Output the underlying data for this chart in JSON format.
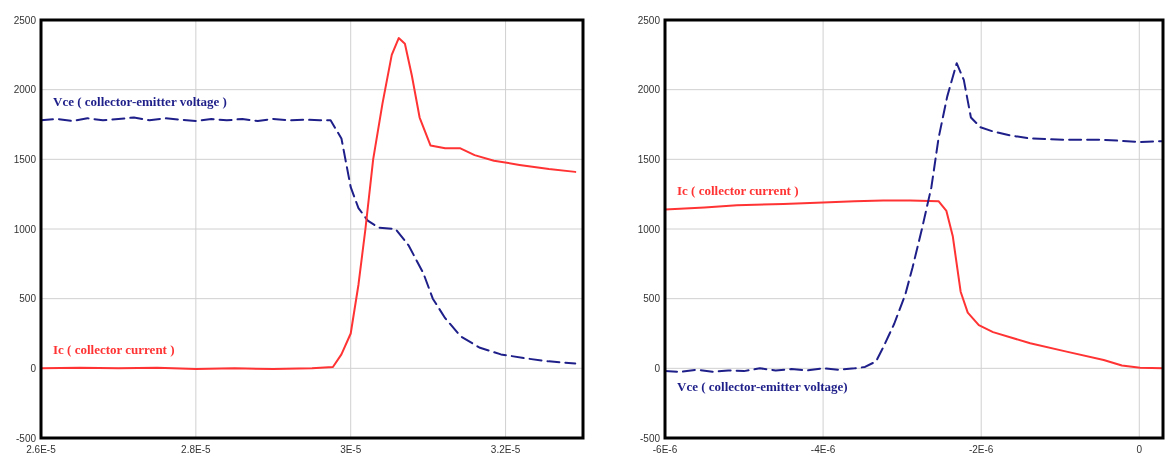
{
  "chart_data": [
    {
      "type": "line",
      "xlim": [
        2.6e-05,
        3.3e-05
      ],
      "xticks": [
        {
          "value": 2.6e-05,
          "label": "2.6E-5"
        },
        {
          "value": 2.8e-05,
          "label": "2.8E-5"
        },
        {
          "value": 3e-05,
          "label": "3E-5"
        },
        {
          "value": 3.2e-05,
          "label": "3.2E-5"
        }
      ],
      "ylim": [
        -500,
        2500
      ],
      "yticks": [
        -500,
        0,
        500,
        1000,
        1500,
        2000,
        2500
      ],
      "grid": true,
      "series": [
        {
          "name": "Vce ( collector-emitter voltage )",
          "color": "#1f1f8a",
          "line_style": "dashed",
          "x": [
            2.6e-05,
            2.62e-05,
            2.64e-05,
            2.66e-05,
            2.68e-05,
            2.7e-05,
            2.72e-05,
            2.74e-05,
            2.76e-05,
            2.78e-05,
            2.8e-05,
            2.82e-05,
            2.84e-05,
            2.86e-05,
            2.88e-05,
            2.9e-05,
            2.92e-05,
            2.94e-05,
            2.96e-05,
            2.974e-05,
            2.988e-05,
            3e-05,
            3.01e-05,
            3.022e-05,
            3.036e-05,
            3.058e-05,
            3.075e-05,
            3.094e-05,
            3.106e-05,
            3.122e-05,
            3.142e-05,
            3.166e-05,
            3.194e-05,
            3.228e-05,
            3.256e-05,
            3.29e-05
          ],
          "values": [
            1780,
            1790,
            1775,
            1795,
            1780,
            1790,
            1800,
            1780,
            1795,
            1785,
            1775,
            1790,
            1780,
            1790,
            1775,
            1790,
            1780,
            1785,
            1780,
            1780,
            1650,
            1300,
            1150,
            1060,
            1010,
            1000,
            880,
            680,
            500,
            360,
            230,
            150,
            100,
            70,
            50,
            35
          ]
        },
        {
          "name": "Ic ( collector current )",
          "color": "#ff3333",
          "line_style": "solid",
          "x": [
            2.6e-05,
            2.65e-05,
            2.7e-05,
            2.75e-05,
            2.8e-05,
            2.85e-05,
            2.9e-05,
            2.95e-05,
            2.977e-05,
            2.988e-05,
            3e-05,
            3.01e-05,
            3.019e-05,
            3.029e-05,
            3.041e-05,
            3.053e-05,
            3.062e-05,
            3.07e-05,
            3.079e-05,
            3.089e-05,
            3.103e-05,
            3.122e-05,
            3.141e-05,
            3.16e-05,
            3.185e-05,
            3.218e-05,
            3.256e-05,
            3.29e-05
          ],
          "values": [
            0,
            5,
            0,
            5,
            -5,
            0,
            -5,
            0,
            10,
            100,
            250,
            600,
            1000,
            1500,
            1900,
            2250,
            2370,
            2330,
            2100,
            1800,
            1600,
            1580,
            1580,
            1530,
            1490,
            1460,
            1430,
            1410
          ]
        }
      ]
    },
    {
      "type": "line",
      "xlim": [
        -6e-06,
        3e-07
      ],
      "xticks": [
        {
          "value": -6e-06,
          "label": "-6E-6"
        },
        {
          "value": -4e-06,
          "label": "-4E-6"
        },
        {
          "value": -2e-06,
          "label": "-2E-6"
        },
        0
      ],
      "ylim": [
        -500,
        2500
      ],
      "yticks": [
        -500,
        0,
        500,
        1000,
        1500,
        2000,
        2500
      ],
      "grid": true,
      "series": [
        {
          "name": "Ic ( collector current )",
          "color": "#ff3333",
          "line_style": "solid",
          "x": [
            -6e-06,
            -5.5e-06,
            -5.09e-06,
            -4.5e-06,
            -4e-06,
            -3.6e-06,
            -3.24e-06,
            -2.9e-06,
            -2.54e-06,
            -2.44e-06,
            -2.36e-06,
            -2.26e-06,
            -2.17e-06,
            -2.03e-06,
            -1.85e-06,
            -1.38e-06,
            -9.2e-07,
            -4.5e-07,
            -2.2e-07,
            1e-08,
            3e-07
          ],
          "values": [
            1140,
            1155,
            1170,
            1180,
            1190,
            1200,
            1205,
            1205,
            1200,
            1130,
            950,
            550,
            400,
            310,
            260,
            180,
            120,
            60,
            20,
            5,
            0
          ]
        },
        {
          "name": "Vce ( collector-emitter voltage)",
          "color": "#1f1f8a",
          "line_style": "dashed",
          "x": [
            -6e-06,
            -5.8e-06,
            -5.6e-06,
            -5.4e-06,
            -5.2e-06,
            -5e-06,
            -4.8e-06,
            -4.6e-06,
            -4.4e-06,
            -4.2e-06,
            -4e-06,
            -3.8e-06,
            -3.6e-06,
            -3.47e-06,
            -3.33e-06,
            -3.24e-06,
            -3.1e-06,
            -2.96e-06,
            -2.87e-06,
            -2.75e-06,
            -2.63e-06,
            -2.54e-06,
            -2.43e-06,
            -2.31e-06,
            -2.22e-06,
            -2.13e-06,
            -2.01e-06,
            -1.85e-06,
            -1.62e-06,
            -1.38e-06,
            -9.2e-07,
            -4.5e-07,
            1e-08,
            3e-07
          ],
          "values": [
            -20,
            -25,
            -10,
            -25,
            -15,
            -20,
            0,
            -15,
            -5,
            -15,
            0,
            -10,
            0,
            10,
            50,
            150,
            320,
            530,
            720,
            1000,
            1300,
            1650,
            1950,
            2190,
            2070,
            1800,
            1730,
            1700,
            1670,
            1650,
            1640,
            1640,
            1625,
            1630
          ]
        }
      ]
    }
  ]
}
